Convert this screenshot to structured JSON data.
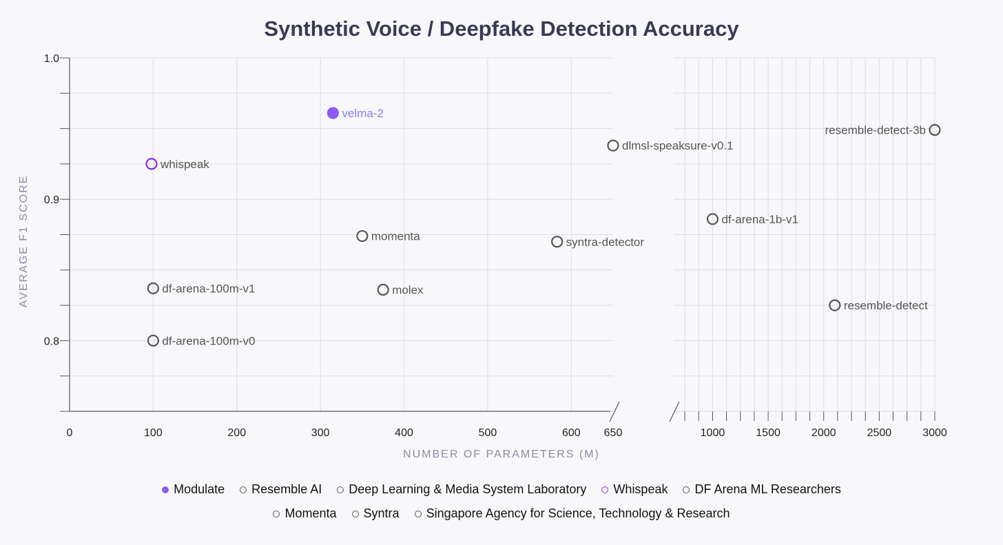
{
  "chart_data": {
    "type": "scatter",
    "title": "Synthetic Voice / Deepfake Detection Accuracy",
    "xlabel": "NUMBER OF PARAMETERS (M)",
    "ylabel": "AVERAGE F1 SCORE",
    "x_axis": {
      "broken": true,
      "left_segment": {
        "range": [
          0,
          650
        ],
        "ticks": [
          0,
          100,
          200,
          300,
          400,
          500,
          600,
          650
        ]
      },
      "right_segment": {
        "range": [
          650,
          3000
        ],
        "ticks": [
          1000,
          1500,
          2000,
          2500,
          3000
        ]
      }
    },
    "y_axis": {
      "range": [
        0.75,
        1.0
      ],
      "ticks": [
        0.8,
        0.9,
        1.0
      ],
      "tick_labels": [
        "0.8",
        "0.9",
        "1.0"
      ]
    },
    "grid": true,
    "points": [
      {
        "label": "velma-2",
        "x": 315,
        "y": 0.961,
        "org": "Modulate"
      },
      {
        "label": "whispeak",
        "x": 98,
        "y": 0.925,
        "org": "Whispeak"
      },
      {
        "label": "momenta",
        "x": 350,
        "y": 0.874,
        "org": "Momenta"
      },
      {
        "label": "syntra-detector",
        "x": 583,
        "y": 0.87,
        "org": "Syntra"
      },
      {
        "label": "df-arena-100m-v1",
        "x": 100,
        "y": 0.837,
        "org": "DF Arena ML Researchers"
      },
      {
        "label": "molex",
        "x": 375,
        "y": 0.836,
        "org": "Singapore Agency for Science, Technology & Research"
      },
      {
        "label": "df-arena-100m-v0",
        "x": 100,
        "y": 0.8,
        "org": "DF Arena ML Researchers"
      },
      {
        "label": "resemble-detect-3b",
        "x": 3000,
        "y": 0.949,
        "org": "Resemble AI"
      },
      {
        "label": "dlmsl-speaksure-v0.1",
        "x": 650,
        "y": 0.938,
        "org": "Deep Learning & Media System Laboratory"
      },
      {
        "label": "df-arena-1b-v1",
        "x": 1000,
        "y": 0.886,
        "org": "DF Arena ML Researchers"
      },
      {
        "label": "resemble-detect",
        "x": 2100,
        "y": 0.825,
        "org": "Resemble AI"
      }
    ],
    "legend": {
      "placement": "bottom",
      "rows": [
        [
          {
            "name": "Modulate",
            "style": "filled",
            "color": "#8b5cf6"
          },
          {
            "name": "Resemble AI",
            "style": "hollow",
            "color": "#555555"
          },
          {
            "name": "Deep Learning & Media System Laboratory",
            "style": "hollow",
            "color": "#555555"
          },
          {
            "name": "Whispeak",
            "style": "hollow",
            "color": "#8a2be2"
          },
          {
            "name": "DF Arena ML Researchers",
            "style": "hollow",
            "color": "#555555"
          }
        ],
        [
          {
            "name": "Momenta",
            "style": "hollow",
            "color": "#555555"
          },
          {
            "name": "Syntra",
            "style": "hollow",
            "color": "#555555"
          },
          {
            "name": "Singapore Agency for Science, Technology & Research",
            "style": "hollow",
            "color": "#555555"
          }
        ]
      ]
    },
    "colors": {
      "title": "#3a3a52",
      "axis_label": "#8a8aa0",
      "grid": "#dcdce2",
      "axis": "#555555",
      "point": "#555555",
      "point_label": "#555555",
      "modulate": "#8b5cf6",
      "modulate_label": "#8b7cf6",
      "whispeak": "#8a2be2"
    }
  }
}
